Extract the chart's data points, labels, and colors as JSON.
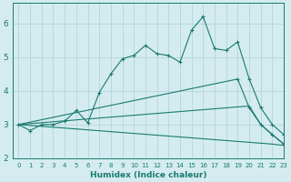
{
  "xlabel": "Humidex (Indice chaleur)",
  "background_color": "#d4ecef",
  "line_color": "#1a7a6e",
  "grid_color": "#b0d0d4",
  "xlim": [
    -0.5,
    23
  ],
  "ylim": [
    2.0,
    6.6
  ],
  "x_ticks": [
    0,
    1,
    2,
    3,
    4,
    5,
    6,
    7,
    8,
    9,
    10,
    11,
    12,
    13,
    14,
    15,
    16,
    17,
    18,
    19,
    20,
    21,
    22,
    23
  ],
  "y_ticks": [
    2,
    3,
    4,
    5,
    6
  ],
  "series": [
    {
      "x": [
        0,
        1,
        2,
        3,
        4,
        5,
        6,
        7,
        8,
        9,
        10,
        11,
        12,
        13,
        14,
        15,
        16,
        17,
        18,
        19,
        20,
        21,
        22,
        23
      ],
      "y": [
        3.0,
        2.82,
        3.0,
        3.0,
        3.1,
        3.42,
        3.05,
        3.95,
        4.5,
        4.95,
        5.05,
        5.35,
        5.1,
        5.05,
        4.85,
        5.8,
        6.2,
        5.25,
        5.2,
        5.45,
        4.35,
        3.5,
        3.0,
        2.7
      ],
      "marker": true
    },
    {
      "x": [
        0,
        19,
        20,
        21,
        22,
        23
      ],
      "y": [
        3.0,
        4.35,
        3.5,
        3.0,
        2.7,
        2.42
      ],
      "marker": true
    },
    {
      "x": [
        0,
        20,
        21,
        22,
        23
      ],
      "y": [
        3.0,
        3.55,
        3.0,
        2.7,
        2.42
      ],
      "marker": false
    },
    {
      "x": [
        0,
        22,
        23
      ],
      "y": [
        3.0,
        2.42,
        2.38
      ],
      "marker": false
    }
  ]
}
